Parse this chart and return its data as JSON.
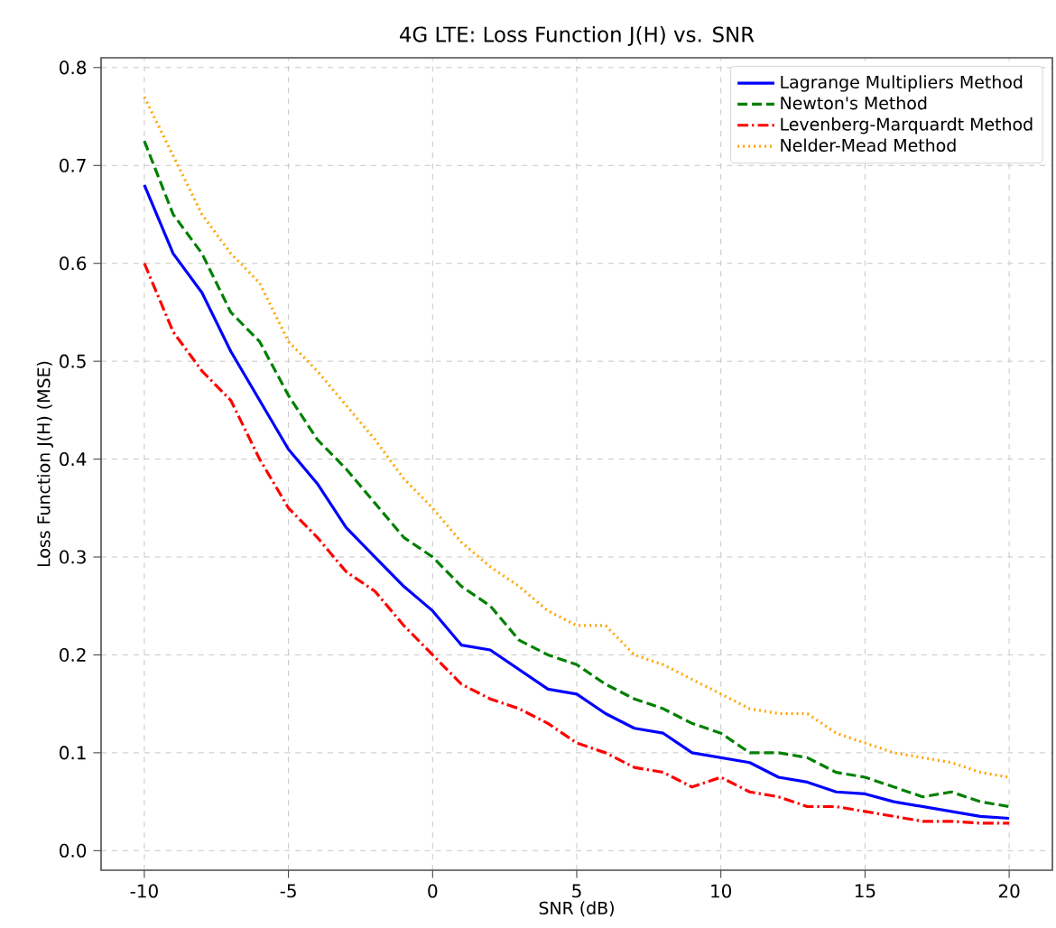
{
  "chart_data": {
    "type": "line",
    "title": "4G LTE: Loss Function J(H) vs. SNR",
    "xlabel": "SNR (dB)",
    "ylabel": "Loss Function J(H) (MSE)",
    "x": [
      -10,
      -9,
      -8,
      -7,
      -6,
      -5,
      -4,
      -3,
      -2,
      -1,
      0,
      1,
      2,
      3,
      4,
      5,
      6,
      7,
      8,
      9,
      10,
      11,
      12,
      13,
      14,
      15,
      16,
      17,
      18,
      19,
      20
    ],
    "series": [
      {
        "name": "Lagrange Multipliers Method",
        "color": "#0000ff",
        "line_style": "solid",
        "values": [
          0.68,
          0.61,
          0.57,
          0.51,
          0.46,
          0.41,
          0.375,
          0.33,
          0.3,
          0.27,
          0.245,
          0.21,
          0.205,
          0.185,
          0.165,
          0.16,
          0.14,
          0.125,
          0.12,
          0.1,
          0.095,
          0.09,
          0.075,
          0.07,
          0.06,
          0.058,
          0.05,
          0.045,
          0.04,
          0.035,
          0.033
        ]
      },
      {
        "name": "Newton's Method",
        "color": "#008000",
        "line_style": "dashed",
        "values": [
          0.725,
          0.65,
          0.61,
          0.55,
          0.52,
          0.465,
          0.42,
          0.39,
          0.355,
          0.32,
          0.3,
          0.27,
          0.25,
          0.215,
          0.2,
          0.19,
          0.17,
          0.155,
          0.145,
          0.13,
          0.12,
          0.1,
          0.1,
          0.095,
          0.08,
          0.075,
          0.065,
          0.055,
          0.06,
          0.05,
          0.045
        ]
      },
      {
        "name": "Levenberg-Marquardt Method",
        "color": "#ff0000",
        "line_style": "dashdot",
        "values": [
          0.6,
          0.53,
          0.49,
          0.46,
          0.4,
          0.35,
          0.32,
          0.285,
          0.265,
          0.23,
          0.2,
          0.17,
          0.155,
          0.145,
          0.13,
          0.11,
          0.1,
          0.085,
          0.08,
          0.065,
          0.075,
          0.06,
          0.055,
          0.045,
          0.045,
          0.04,
          0.035,
          0.03,
          0.03,
          0.028,
          0.028
        ]
      },
      {
        "name": "Nelder-Mead Method",
        "color": "#ffa500",
        "line_style": "dotted",
        "values": [
          0.77,
          0.71,
          0.65,
          0.61,
          0.58,
          0.52,
          0.49,
          0.455,
          0.42,
          0.38,
          0.35,
          0.315,
          0.29,
          0.27,
          0.245,
          0.23,
          0.23,
          0.2,
          0.19,
          0.175,
          0.16,
          0.145,
          0.14,
          0.14,
          0.12,
          0.11,
          0.1,
          0.095,
          0.09,
          0.08,
          0.075
        ]
      }
    ],
    "xlim": [
      -11.5,
      21.5
    ],
    "ylim": [
      -0.02,
      0.81
    ],
    "xticks": [
      -10,
      -5,
      0,
      5,
      10,
      15,
      20
    ],
    "yticks": [
      {
        "value": 0,
        "label": "0.0"
      },
      0.1,
      0.2,
      0.3,
      0.4,
      0.5,
      0.6,
      0.7,
      0.8
    ],
    "grid": true,
    "legend": "top right",
    "marker": "none"
  }
}
